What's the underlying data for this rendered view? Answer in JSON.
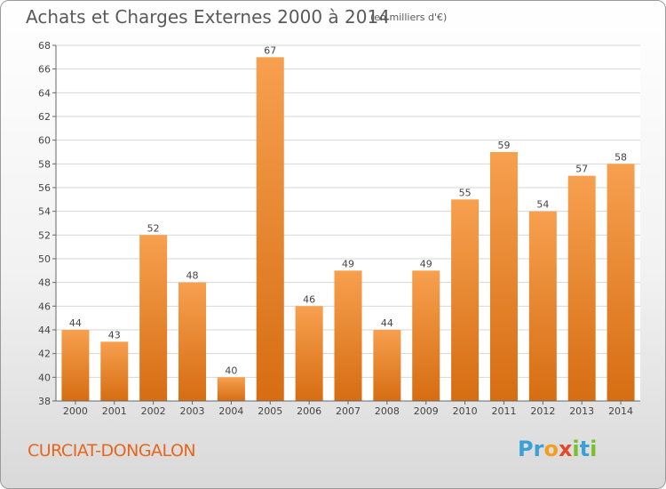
{
  "header": {
    "title": "Achats et Charges Externes 2000 à 2014",
    "subtitle": "(en milliers d'€)"
  },
  "footer": {
    "place": "CURCIAT-DONGALON",
    "logo_text": "Proxiti",
    "logo_letters": [
      {
        "ch": "P",
        "color": "#3aa0d8"
      },
      {
        "ch": "r",
        "color": "#3aa0d8"
      },
      {
        "ch": "o",
        "color": "#f0a020"
      },
      {
        "ch": "x",
        "color": "#e24a2a"
      },
      {
        "ch": "i",
        "color": "#7cbf2a"
      },
      {
        "ch": "t",
        "color": "#3aa0d8"
      },
      {
        "ch": "i",
        "color": "#7cbf2a"
      }
    ]
  },
  "colors": {
    "bar_light": "#f7a04f",
    "bar_dark": "#d66d12",
    "grid": "#d6d6d6",
    "axis": "#666666",
    "text": "#444444",
    "place": "#e8661c"
  },
  "chart_data": {
    "type": "bar",
    "title": "Achats et Charges Externes 2000 à 2014",
    "subtitle": "(en milliers d'€)",
    "categories": [
      "2000",
      "2001",
      "2002",
      "2003",
      "2004",
      "2005",
      "2006",
      "2007",
      "2008",
      "2009",
      "2010",
      "2011",
      "2012",
      "2013",
      "2014"
    ],
    "values": [
      44,
      43,
      52,
      48,
      40,
      67,
      46,
      49,
      44,
      49,
      55,
      59,
      54,
      57,
      58
    ],
    "ylim": [
      38,
      68
    ],
    "yticks": [
      38,
      40,
      42,
      44,
      46,
      48,
      50,
      52,
      54,
      56,
      58,
      60,
      62,
      64,
      66,
      68
    ],
    "grid": true,
    "data_labels": true
  }
}
